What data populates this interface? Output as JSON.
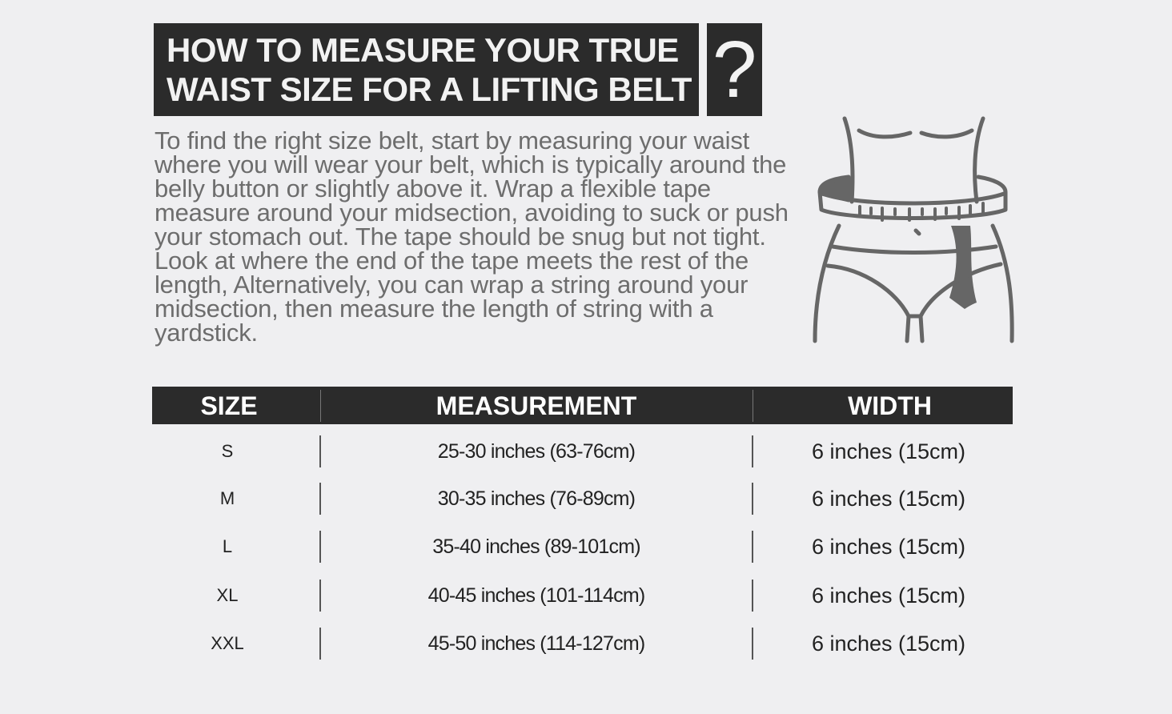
{
  "header": {
    "title_line1": "HOW TO MEASURE YOUR TRUE",
    "title_line2": "WAIST SIZE FOR A LIFTING BELT",
    "question_mark": "?"
  },
  "instructions": "To find the right size belt, start by measuring your waist where you will wear your belt, which is typically around the belly button or slightly above it. Wrap a flexible tape measure around your midsection, avoiding to suck or push your stomach out. The tape should be snug but not tight. Look at where the end of the tape meets the rest of the length, Alternatively, you can wrap a string around your midsection, then measure the length of string with a yardstick.",
  "illustration": {
    "icon": "waist-tape-measure-icon",
    "color": "#666666"
  },
  "table": {
    "headers": [
      "SIZE",
      "MEASUREMENT",
      "WIDTH"
    ],
    "rows": [
      {
        "size": "S",
        "measurement": "25-30 inches (63-76cm)",
        "width": "6 inches (15cm)"
      },
      {
        "size": "M",
        "measurement": "30-35 inches (76-89cm)",
        "width": "6 inches (15cm)"
      },
      {
        "size": "L",
        "measurement": "35-40 inches (89-101cm)",
        "width": "6 inches (15cm)"
      },
      {
        "size": "XL",
        "measurement": "40-45 inches (101-114cm)",
        "width": "6 inches (15cm)"
      },
      {
        "size": "XXL",
        "measurement": "45-50 inches (114-127cm)",
        "width": "6 inches (15cm)"
      }
    ]
  },
  "colors": {
    "background": "#efeff1",
    "dark": "#2b2b2b",
    "body_text": "#6d6d6d"
  }
}
